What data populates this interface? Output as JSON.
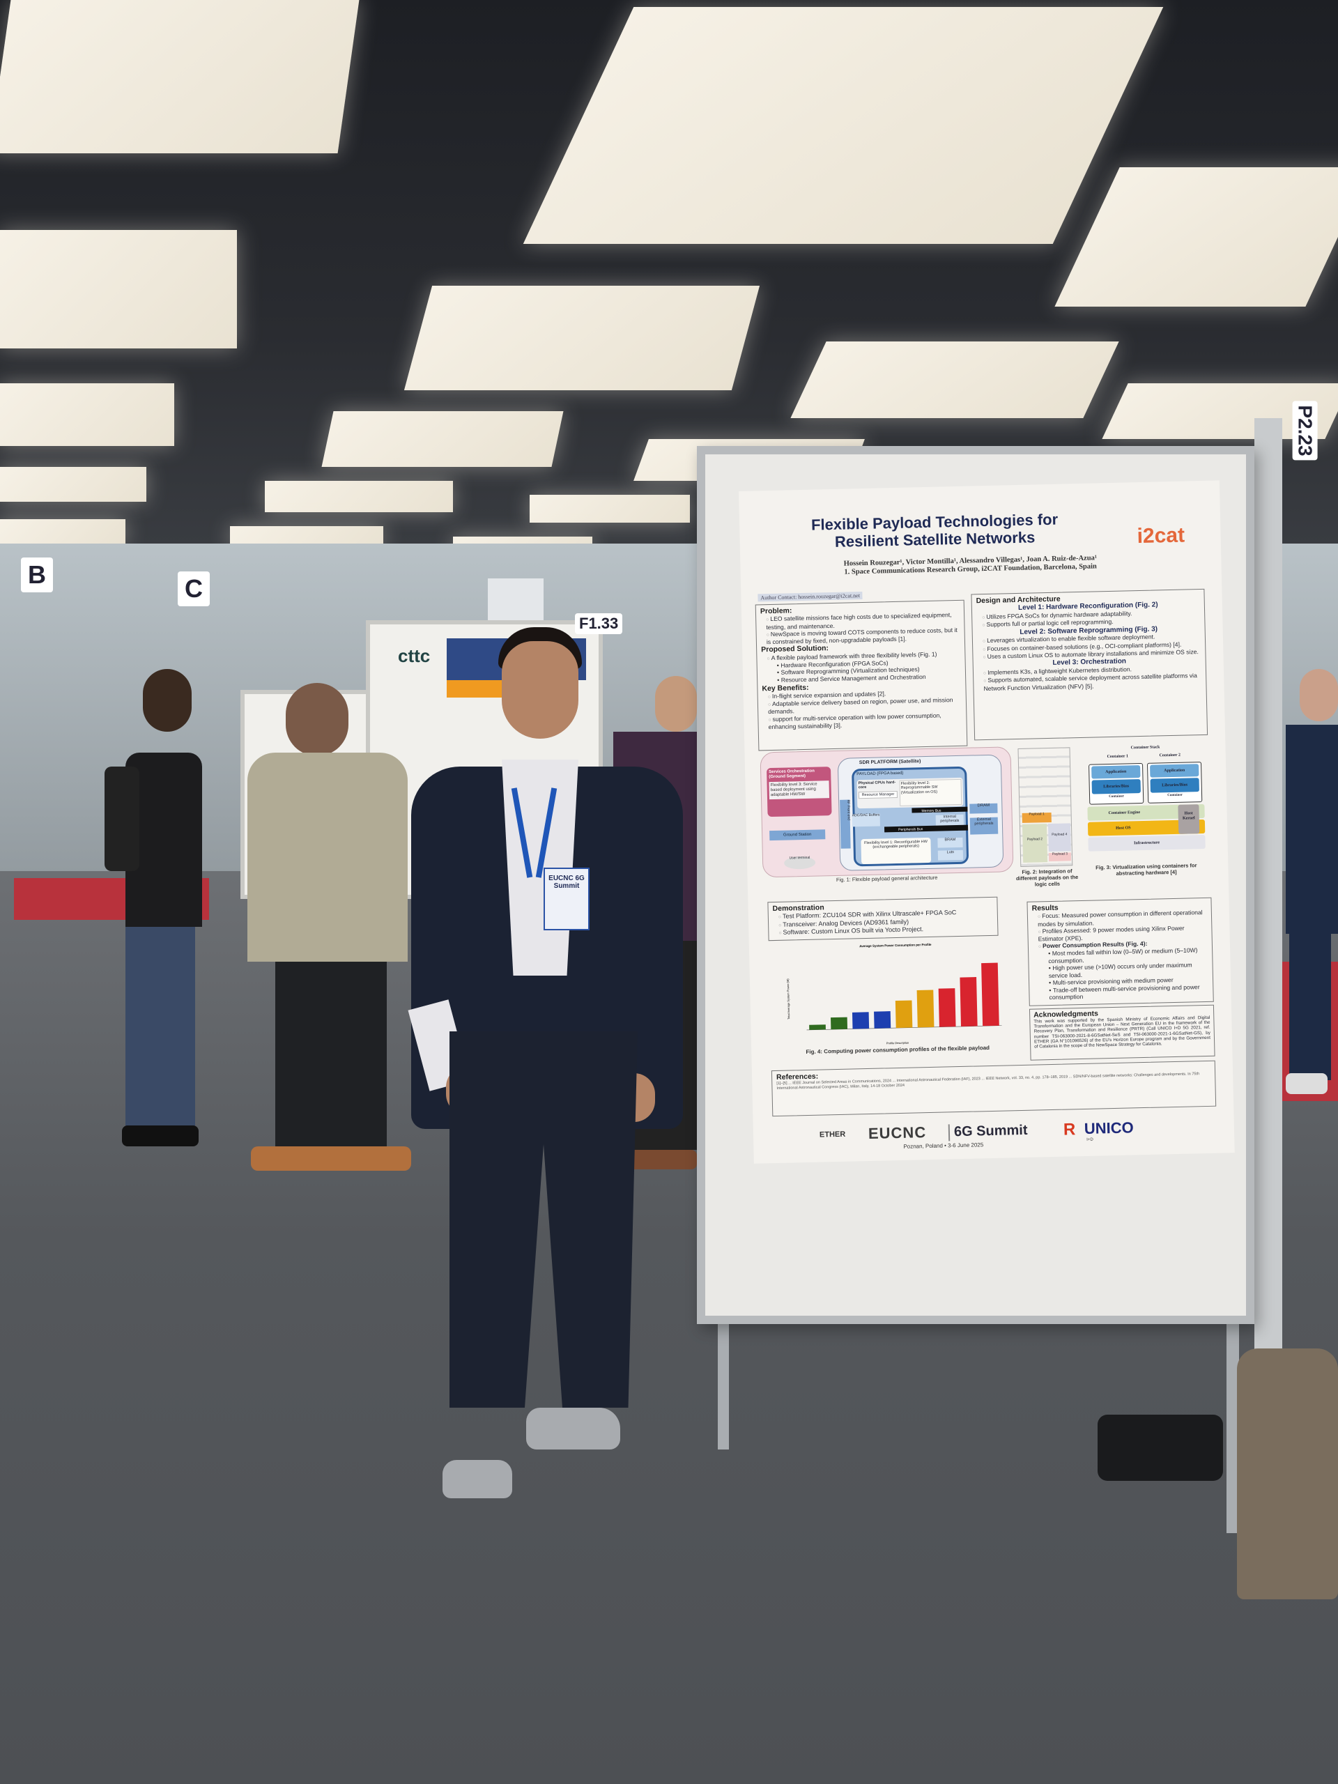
{
  "scene": {
    "background_signs": [
      "B",
      "C",
      "F1.33",
      "P2.23"
    ],
    "badge": "EUCNC 6G Summit",
    "bg_poster_logo": "cttc"
  },
  "poster": {
    "title_line1": "Flexible Payload Technologies for",
    "title_line2": "Resilient Satellite Networks",
    "authors": "Hossein Rouzegar¹, Victor Montilla¹, Alessandro Villegas¹, Joan A. Ruiz-de-Azua¹",
    "affiliation": "1. Space Communications Research Group, i2CAT Foundation, Barcelona, Spain",
    "contact": "Author Contact: hossein.rouzegar@i2cat.net",
    "logo": "i2cat",
    "problem": {
      "heading": "Problem:",
      "items": [
        "LEO satellite missions face high costs due to specialized equipment, testing, and maintenance.",
        "NewSpace is moving toward COTS components to reduce costs, but it is constrained by fixed, non-upgradable payloads [1]."
      ]
    },
    "solution": {
      "heading": "Proposed Solution:",
      "intro": "A flexible payload framework with three flexibility levels (Fig. 1)",
      "items": [
        "Hardware Reconfiguration (FPGA SoCs)",
        "Software Reprogramming (Virtualization techniques)",
        "Resource and Service Management and Orchestration"
      ]
    },
    "benefits": {
      "heading": "Key Benefits:",
      "items": [
        "In-flight service expansion and updates [2].",
        "Adaptable service delivery based on region, power use, and mission demands.",
        "support for multi-service operation with low power consumption, enhancing sustainability [3]."
      ]
    },
    "design": {
      "heading": "Design and Architecture",
      "level1": "Level 1: Hardware Reconfiguration (Fig. 2)",
      "level1_items": [
        "Utilizes FPGA SoCs for dynamic hardware adaptability.",
        "Supports full or partial logic cell reprogramming."
      ],
      "level2": "Level 2: Software Reprogramming (Fig. 3)",
      "level2_items": [
        "Leverages virtualization to enable flexible software deployment.",
        "Focuses on container-based solutions (e.g., OCI-compliant platforms) [4].",
        "Uses a custom Linux OS to automate library installations and minimize OS size."
      ],
      "level3": "Level 3: Orchestration",
      "level3_items": [
        "Implements K3s, a lightweight Kubernetes distribution.",
        "Supports automated, scalable service deployment across satellite platforms via Network Function Virtualization (NFV) [5]."
      ]
    },
    "fig1": {
      "caption": "Fig. 1: Flexible payload general architecture",
      "orchestration": "Services Orchestration (Ground Segment)",
      "flex3": "Flexibility level 3: Service based deployment using adaptable HW/SW",
      "ground_station": "Ground Station",
      "sdr": "SDR PLATFORM (Satellite)",
      "payload": "PAYLOAD (FPGA based)",
      "cpus": "Physical CPUs hard-core",
      "flex2": "Flexibility level 2: Reprogrammable SW (Virtualization on OS)",
      "resource_manager": "Resource Manager",
      "memory_bus": "Memory Bus",
      "peripherals_bus": "Peripherals Bus",
      "adc": "ADC/DAC Buffers",
      "rf": "RF Front end",
      "dram": "DRAM",
      "external": "External peripherals",
      "internal": "Internal peripherals",
      "bram": "BRAM",
      "luts": "Luts",
      "flex1": "Flexibility level 1: Reconfigurable HW (exchangeable peripherals)",
      "user": "User terminal"
    },
    "fig2": {
      "caption": "Fig. 2: Integration of different payloads on the logic cells",
      "payloads": [
        "Payload 1",
        "Payload 2",
        "Payload 3",
        "Payload 4"
      ]
    },
    "fig3": {
      "caption": "Fig. 3: Virtualization using containers for abstracting hardware [4]",
      "stack_title": "Container Stack",
      "container1": "Container 1",
      "container2": "Container 2",
      "application": "Application",
      "libraries": "Libraries/Bins",
      "container": "Container",
      "engine": "Container Engine",
      "host_os": "Host OS",
      "kernel": "Host Kernel",
      "infra": "Infrastructure"
    },
    "demonstration": {
      "heading": "Demonstration",
      "items": [
        "Test Platform: ZCU104 SDR with Xilinx Ultrascale+ FPGA SoC",
        "Transceiver: Analog Devices (AD9361 family)",
        "Software: Custom Linux OS built via Yocto Project."
      ]
    },
    "fig4_caption": "Fig. 4: Computing power consumption profiles of the flexible payload",
    "results": {
      "heading": "Results",
      "items": [
        "Focus: Measured power consumption in different operational modes by simulation.",
        "Profiles Assessed: 9 power modes using Xilinx Power Estimator (XPE).",
        "Power Consumption Results (Fig. 4):"
      ],
      "subitems": [
        "Most modes fall within low (0–5W) or medium (5–10W) consumption.",
        "High power use (>10W) occurs only under maximum service load.",
        "Multi-service provisioning with medium power",
        "Trade-off between multi-service provisioning and power consumption"
      ]
    },
    "acknowledgments": {
      "heading": "Acknowledgments",
      "text": "This work was supported by the Spanish Ministry of Economic Affairs and Digital Transformation and the European Union – Next Generation EU in the framework of the Recovery Plan, Transformation and Resilience (PRTR) (Call UNICO I+D 5G 2021, ref. number TSI-063000-2021-8-6GSatNet-SeS and TSI-063000-2021-1-6GSatNet-GS), by ETHER (GA N°101096526) of the EU's Horizon Europe program and by the Government of Catalonia in the scope of the NewSpace Strategy for Catalonia."
    },
    "references": {
      "heading": "References:",
      "text": "[1]–[5] ... IEEE Journal on Selected Areas in Communications, 2024 ... International Astronautical Federation (IAF), 2023 ... IEEE Network, vol. 33, no. 4, pp. 178–185, 2019 ... SDN/NFV-based satellite networks: Challenges and developments. In 75th International Astronautical Congress (IAC), Milan, Italy, 14-18 October 2024"
    },
    "footer": {
      "ethor": "ETHER",
      "eucnc": "EUCNC",
      "summit": "6G Summit",
      "location": "Poznan, Poland • 3-6 June 2025",
      "unico": "UNICO",
      "unico_sub": "I+D"
    }
  },
  "chart_data": {
    "type": "bar",
    "title": "Average System Power Consumption per Profile",
    "xlabel": "Profile Description",
    "ylabel": "Total Average System Power (W)",
    "values": [
      1.3,
      3.1,
      4.3,
      4.4,
      7.1,
      9.7,
      10.0,
      12.8,
      16.4
    ],
    "colors": [
      "#2f6b1f",
      "#2f6b1f",
      "#1d3fb0",
      "#1d3fb0",
      "#e0a010",
      "#e0a010",
      "#d8242e",
      "#d8242e",
      "#d8242e"
    ],
    "ylim": [
      0,
      20
    ]
  }
}
